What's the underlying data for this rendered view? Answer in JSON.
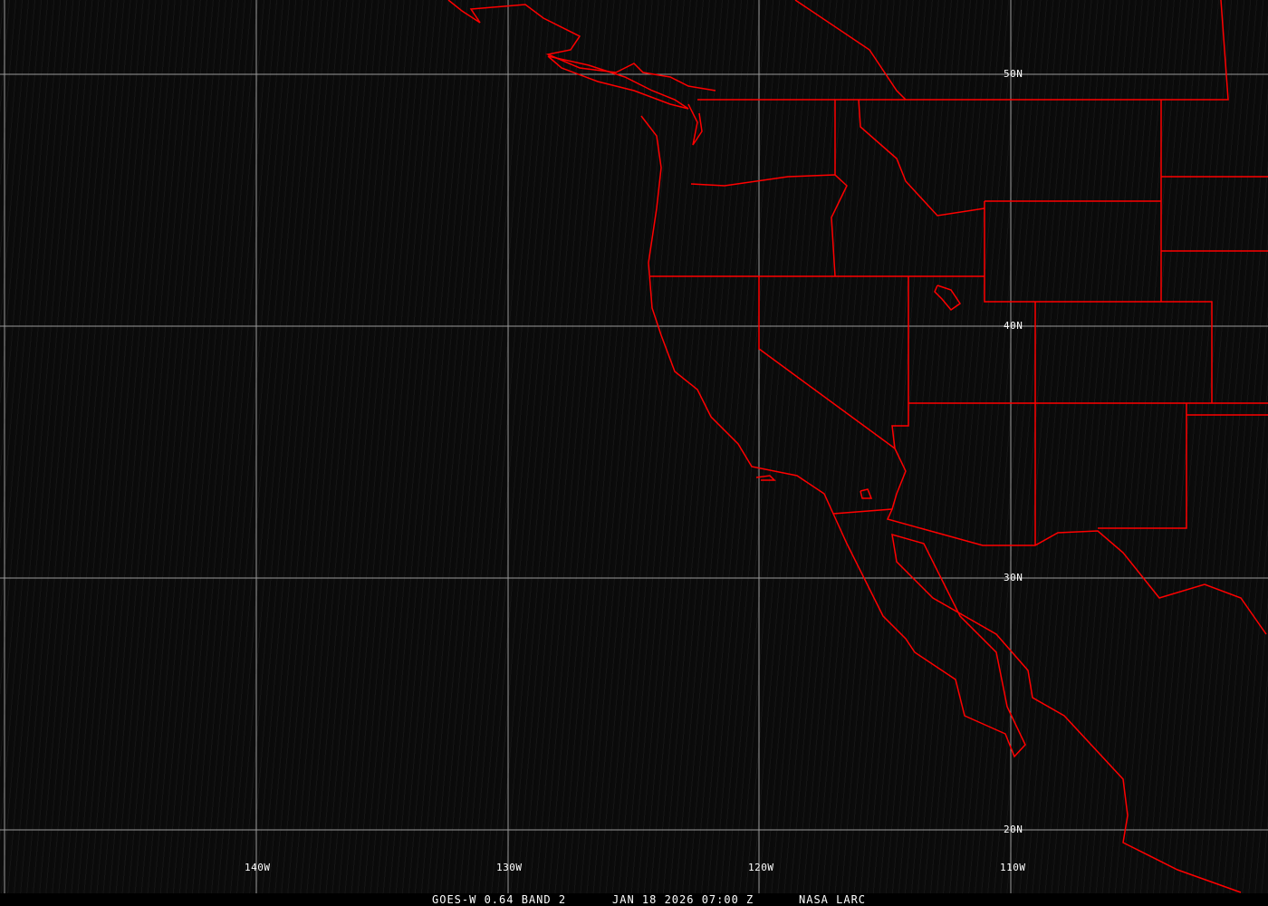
{
  "grid": {
    "lat_labels": [
      "50N",
      "40N",
      "30N",
      "20N"
    ],
    "lon_labels": [
      "140W",
      "130W",
      "120W",
      "110W"
    ]
  },
  "caption": {
    "satellite": "GOES-W 0.64 BAND 2",
    "datetime": "JAN 18 2026 07:00 Z",
    "source": "NASA LARC"
  },
  "colors": {
    "boundaries": "#ff0000",
    "grid": "#9a9a9a",
    "background": "#0a0a0a"
  }
}
